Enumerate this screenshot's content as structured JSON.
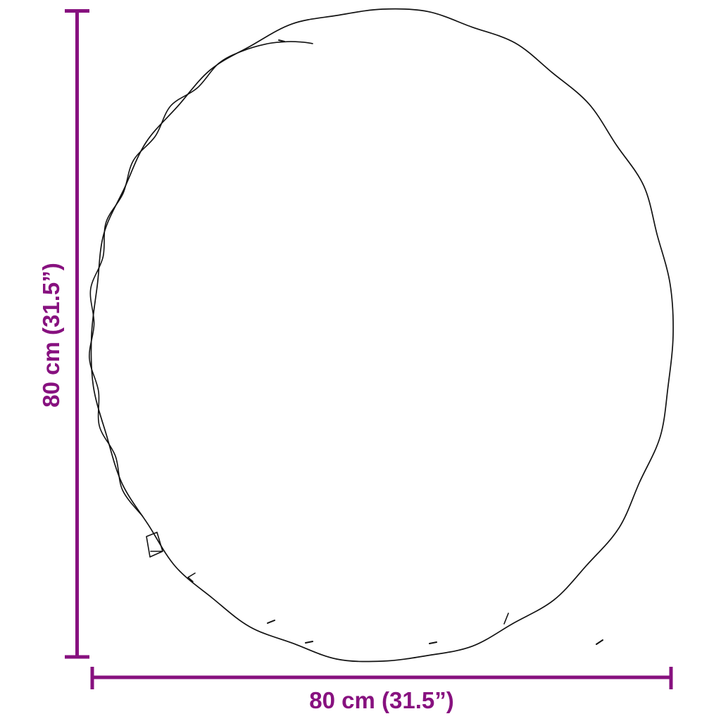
{
  "page": {
    "background": "#ffffff"
  },
  "diagram": {
    "type": "product-dimension-diagram",
    "subject": "round-rug-outline",
    "outline_color": "#121212",
    "dimension_color": "#87117f",
    "height_dimension": {
      "label": "80 cm (31.5”)"
    },
    "width_dimension": {
      "label": "80 cm (31.5”)"
    }
  }
}
